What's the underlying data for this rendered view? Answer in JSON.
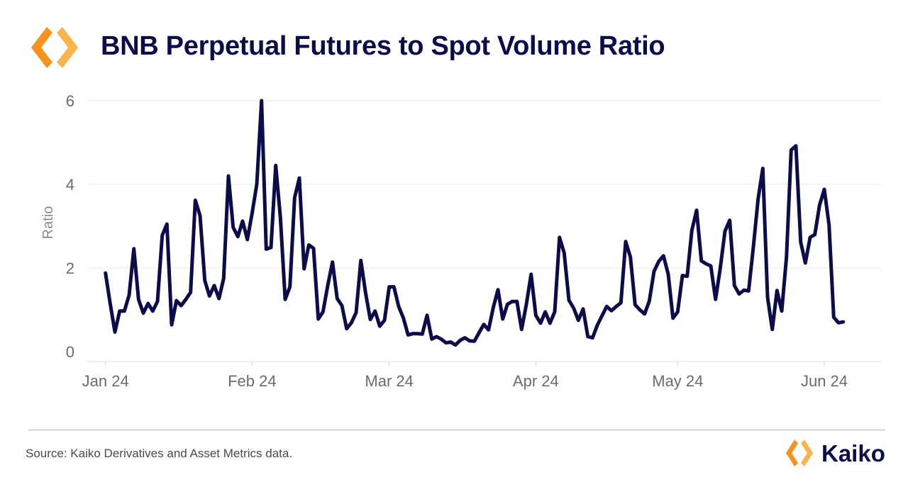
{
  "header": {
    "title": "BNB Perpetual Futures to Spot Volume Ratio"
  },
  "footer": {
    "source": "Source: Kaiko Derivatives and Asset Metrics data.",
    "brand_name": "Kaiko"
  },
  "colors": {
    "title": "#0c0c4a",
    "line": "#0c0c4a",
    "logo_orange": "#f7931a",
    "logo_orange_light": "#fbb44b",
    "grid": "#e8e8e8",
    "axis_text": "#6b6b6b"
  },
  "icons": {
    "top_logo": "kaiko-hexagon-logo-icon",
    "footer_logo": "kaiko-hexagon-logo-icon"
  },
  "chart_data": {
    "type": "line",
    "title": "BNB Perpetual Futures to Spot Volume Ratio",
    "xlabel": "",
    "ylabel": "Ratio",
    "ylim": [
      0,
      6
    ],
    "xlim": [
      "2023-12-28",
      "2024-06-13"
    ],
    "yticks": [
      0,
      2,
      4,
      6
    ],
    "xticks": [
      {
        "date": "2024-01-01",
        "label": "Jan 24"
      },
      {
        "date": "2024-02-01",
        "label": "Feb 24"
      },
      {
        "date": "2024-03-01",
        "label": "Mar 24"
      },
      {
        "date": "2024-04-01",
        "label": "Apr 24"
      },
      {
        "date": "2024-05-01",
        "label": "May 24"
      },
      {
        "date": "2024-06-01",
        "label": "Jun 24"
      }
    ],
    "grid": true,
    "series": [
      {
        "start_date": "2024-01-01",
        "values": [
          1.88,
          1.15,
          0.47,
          0.97,
          0.97,
          1.35,
          2.46,
          1.25,
          0.92,
          1.15,
          0.97,
          1.2,
          2.78,
          3.05,
          0.64,
          1.22,
          1.1,
          1.25,
          1.42,
          3.62,
          3.25,
          1.7,
          1.33,
          1.58,
          1.27,
          1.75,
          4.2,
          2.97,
          2.75,
          3.12,
          2.68,
          3.3,
          4.0,
          6.0,
          2.45,
          2.49,
          4.45,
          3.2,
          1.25,
          1.55,
          3.68,
          4.15,
          1.98,
          2.55,
          2.47,
          0.78,
          0.95,
          1.58,
          2.14,
          1.27,
          1.1,
          0.55,
          0.69,
          0.93,
          2.18,
          1.41,
          0.77,
          0.97,
          0.61,
          0.75,
          1.55,
          1.55,
          1.08,
          0.8,
          0.4,
          0.43,
          0.43,
          0.42,
          0.87,
          0.3,
          0.36,
          0.3,
          0.21,
          0.23,
          0.16,
          0.27,
          0.33,
          0.26,
          0.25,
          0.45,
          0.65,
          0.52,
          1.05,
          1.48,
          0.78,
          1.13,
          1.2,
          1.2,
          0.53,
          1.13,
          1.85,
          0.87,
          0.68,
          0.95,
          0.68,
          0.95,
          2.73,
          2.36,
          1.23,
          1.04,
          0.75,
          1.02,
          0.36,
          0.33,
          0.63,
          0.86,
          1.08,
          0.98,
          1.08,
          1.17,
          2.63,
          2.26,
          1.12,
          1.0,
          0.9,
          1.21,
          1.92,
          2.16,
          2.29,
          1.85,
          0.8,
          0.95,
          1.82,
          1.8,
          2.9,
          3.38,
          2.17,
          2.1,
          2.05,
          1.25,
          1.99,
          2.88,
          3.14,
          1.58,
          1.38,
          1.47,
          1.45,
          2.5,
          3.65,
          4.38,
          1.3,
          0.53,
          1.46,
          0.97,
          2.26,
          4.82,
          4.92,
          2.62,
          2.12,
          2.73,
          2.8,
          3.5,
          3.88,
          3.03,
          0.82,
          0.69,
          0.71
        ]
      }
    ]
  }
}
